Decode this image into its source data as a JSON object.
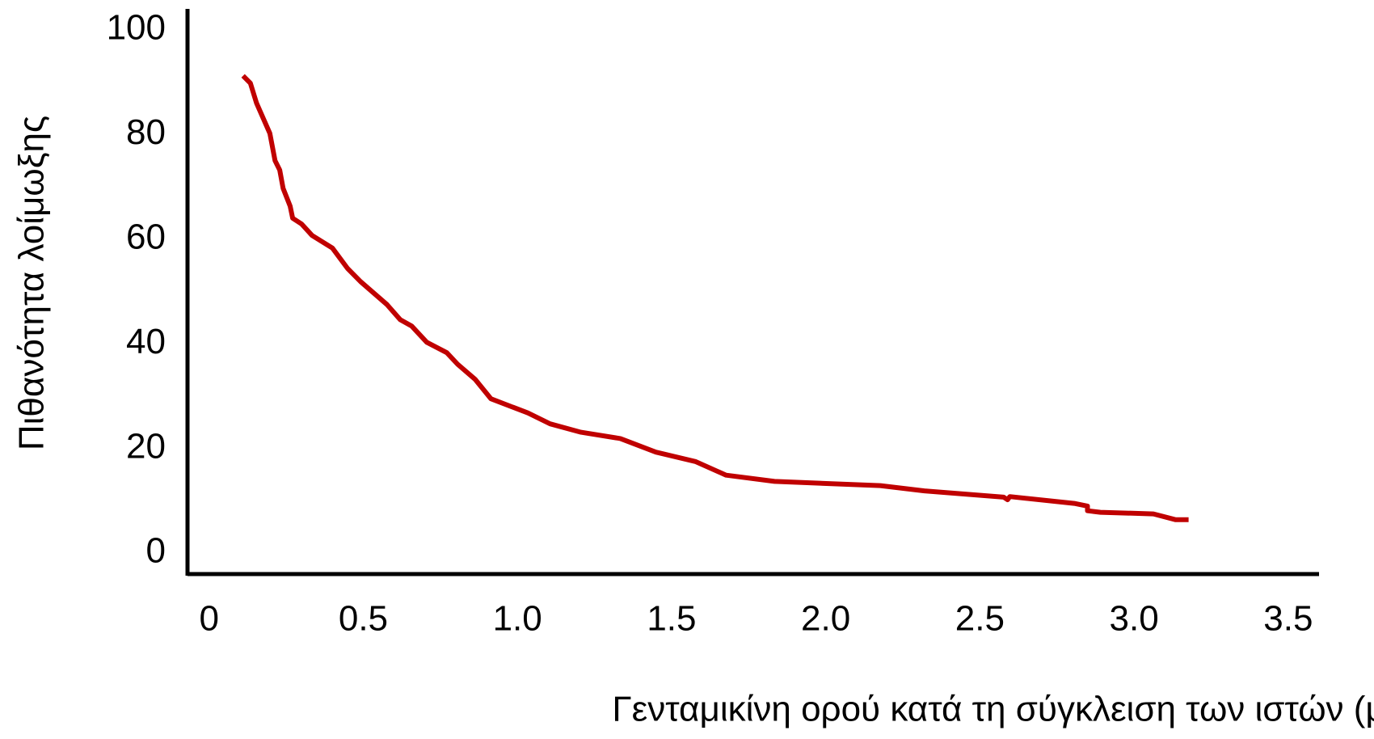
{
  "chart_data": {
    "type": "line",
    "xlabel": "Γενταμικίνη ορού κατά τη σύγκλειση των ιστών (μg/ml)",
    "ylabel": "Πιθανότητα λοίμωξης",
    "x": [
      0.11,
      0.134,
      0.154,
      0.197,
      0.214,
      0.229,
      0.24,
      0.263,
      0.271,
      0.3,
      0.334,
      0.4,
      0.449,
      0.491,
      0.577,
      0.62,
      0.657,
      0.706,
      0.771,
      0.806,
      0.863,
      0.914,
      1.034,
      1.106,
      1.206,
      1.334,
      1.449,
      1.577,
      1.677,
      1.834,
      2.177,
      2.32,
      2.577,
      2.59,
      2.597,
      2.806,
      2.849,
      2.849,
      2.891,
      3.063,
      3.134,
      3.177
    ],
    "series": [
      {
        "color": "#c00000",
        "values": [
          91.2,
          89.8,
          86,
          80.2,
          75,
          73.2,
          69.7,
          66.3,
          64,
          62.9,
          60.7,
          58.3,
          54.4,
          51.9,
          47.5,
          44.6,
          43.4,
          40.3,
          38.3,
          36.1,
          33.2,
          29.5,
          26.8,
          24.7,
          23.1,
          21.9,
          19.3,
          17.5,
          14.9,
          13.7,
          12.9,
          11.9,
          10.7,
          10.2,
          10.8,
          9.5,
          9,
          8.1,
          7.8,
          7.5,
          6.4,
          6.4
        ]
      }
    ],
    "xlim": [
      -0.07,
      3.6
    ],
    "ylim": [
      -4,
      104
    ],
    "xticks": [
      0,
      0.5,
      {
        "value": 1,
        "label": "1.0"
      },
      1.5,
      {
        "value": 2,
        "label": "2.0"
      },
      2.5,
      {
        "value": 3,
        "label": "3.0"
      },
      3.5
    ],
    "yticks": [
      0,
      20,
      40,
      60,
      80,
      100
    ]
  }
}
